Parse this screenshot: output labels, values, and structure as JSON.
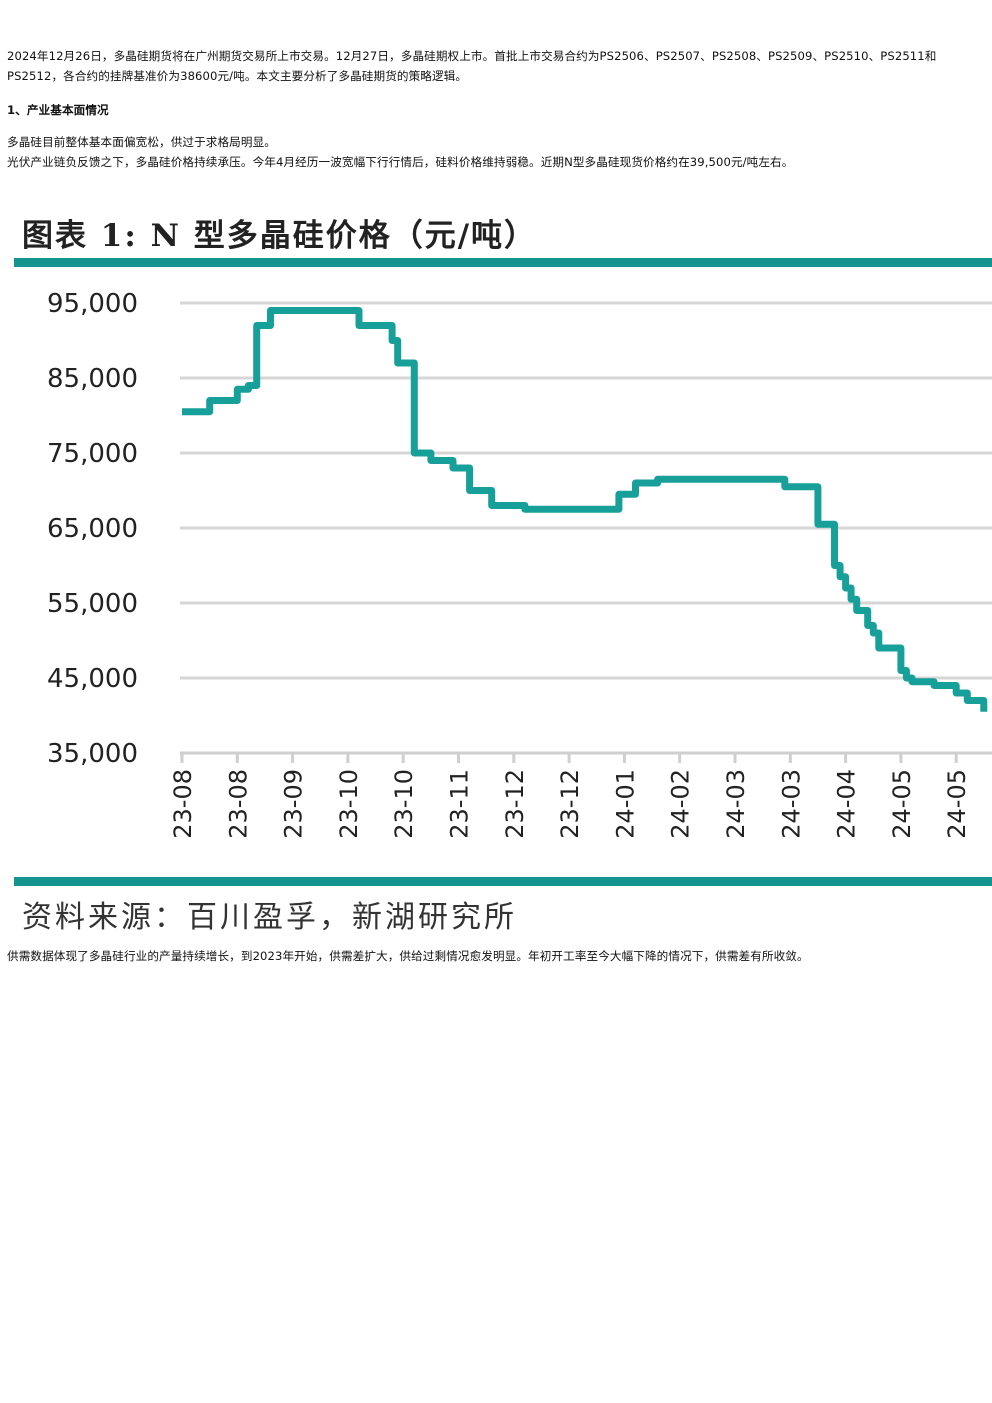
{
  "article": {
    "intro": "2024年12月26日，多晶硅期货将在广州期货交易所上市交易。12月27日，多晶硅期权上市。首批上市交易合约为PS2506、PS2507、PS2508、PS2509、PS2510、PS2511和PS2512，各合约的挂牌基准价为38600元/吨。本文主要分析了多晶硅期货的策略逻辑。",
    "section_heading": "1、产业基本面情况",
    "para1": "多晶硅目前整体基本面偏宽松，供过于求格局明显。",
    "para2": "光伏产业链负反馈之下，多晶硅价格持续承压。今年4月经历一波宽幅下行行情后，硅料价格维持弱稳。近期N型多晶硅现货价格约在39,500元/吨左右。",
    "para_after": "供需数据体现了多晶硅行业的产量持续增长，到2023年开始，供需差扩大，供给过剩情况愈发明显。年初开工率至今大幅下降的情况下，供需差有所收敛。"
  },
  "figure": {
    "title": "图表 1: N 型多晶硅价格（元/吨）",
    "source": "资料来源：百川盈孚，新湖研究所",
    "accent_color": "#13948f",
    "line_color": "#17a09a"
  },
  "chart_data": {
    "type": "line",
    "title": "图表 1: N 型多晶硅价格（元/吨）",
    "xlabel": "",
    "ylabel": "",
    "ylim": [
      35000,
      95000
    ],
    "yticks": [
      "95,000",
      "85,000",
      "75,000",
      "65,000",
      "55,000",
      "45,000",
      "35,000"
    ],
    "ytick_values": [
      95000,
      85000,
      75000,
      65000,
      55000,
      45000,
      35000
    ],
    "xticks": [
      "23-08",
      "23-08",
      "23-09",
      "23-10",
      "23-10",
      "23-11",
      "23-12",
      "23-12",
      "24-01",
      "24-02",
      "24-03",
      "24-03",
      "24-04",
      "24-05",
      "24-05"
    ],
    "grid": "horizontal",
    "series": [
      {
        "x": [
          0,
          0.5,
          0.5,
          1,
          1,
          1.2,
          1.2,
          1.35,
          1.35,
          1.6,
          1.6,
          2.0,
          2.0,
          3.2,
          3.2,
          3.8,
          3.8,
          3.9,
          3.9,
          4.2,
          4.2,
          4.5,
          4.5,
          4.9,
          4.9,
          5.2,
          5.2,
          5.6,
          5.6,
          6.2,
          6.2,
          7.0,
          7.0,
          7.9,
          7.9,
          8.2,
          8.2,
          8.6,
          8.6,
          9.0,
          9.0,
          10.9,
          10.9,
          11.5,
          11.5,
          11.8,
          11.8,
          11.9,
          11.9,
          12.0,
          12.0,
          12.1,
          12.1,
          12.2,
          12.2,
          12.4,
          12.4,
          12.5,
          12.5,
          12.6,
          12.6,
          13.0,
          13.0,
          13.1,
          13.1,
          13.2,
          13.2,
          13.6,
          13.6,
          14.0,
          14.0,
          14.2,
          14.2,
          14.5,
          14.5
        ],
        "y": [
          80500,
          80500,
          82000,
          82000,
          83500,
          83500,
          84000,
          84000,
          92000,
          92000,
          94000,
          94000,
          94000,
          94000,
          92000,
          92000,
          90000,
          90000,
          87000,
          87000,
          75000,
          75000,
          74000,
          74000,
          73000,
          73000,
          70000,
          70000,
          68000,
          68000,
          67500,
          67500,
          67500,
          67500,
          69500,
          69500,
          71000,
          71000,
          71500,
          71500,
          71500,
          71500,
          70500,
          70500,
          65500,
          65500,
          60000,
          60000,
          58500,
          58500,
          57000,
          57000,
          55500,
          55500,
          54000,
          54000,
          52000,
          52000,
          51000,
          51000,
          49000,
          49000,
          46000,
          46000,
          45000,
          45000,
          44500,
          44500,
          44000,
          44000,
          43000,
          43000,
          42000,
          42000,
          40500
        ]
      }
    ]
  }
}
